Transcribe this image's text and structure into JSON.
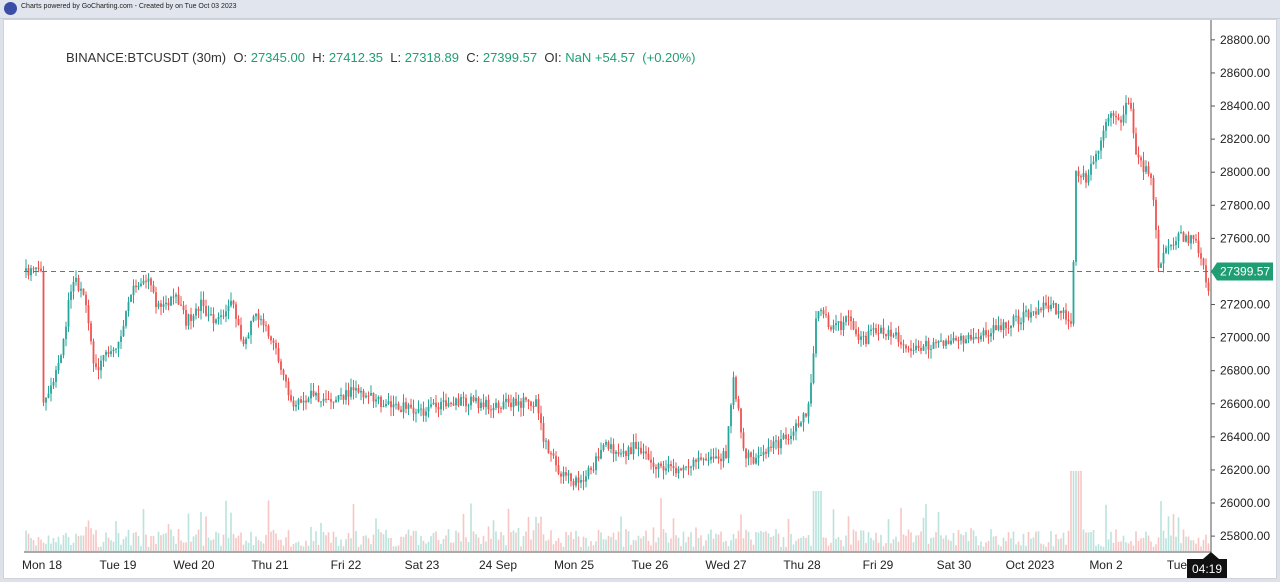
{
  "header": {
    "credit_text": "Charts powered by GoCharting.com - Created by  on Tue Oct 03 2023"
  },
  "legend": {
    "symbol": "BINANCE:BTCUSDT (30m)",
    "o_label": "O:",
    "o_value": "27345.00",
    "h_label": "H:",
    "h_value": "27412.35",
    "l_label": "L:",
    "l_value": "27318.89",
    "c_label": "C:",
    "c_value": "27399.57",
    "oi_label": "OI:",
    "oi_value": "NaN",
    "change": "+54.57",
    "change_pct": "(+0.20%)"
  },
  "colors": {
    "up": "#26a69a",
    "down": "#ef5350",
    "price_line": "#1f9e73",
    "axis_text": "#222222",
    "legend_value": "#1f9e73"
  },
  "chart_data": {
    "type": "candlestick",
    "xlabel": "",
    "ylabel": "",
    "ylim": [
      25710,
      28920
    ],
    "y_ticks": [
      25800,
      26000,
      26200,
      26400,
      26600,
      26800,
      27000,
      27200,
      27400,
      27600,
      27800,
      28000,
      28200,
      28400,
      28600,
      28800
    ],
    "y_tick_labels": [
      "25800.00",
      "26000.00",
      "26200.00",
      "26400.00",
      "26600.00",
      "26800.00",
      "27000.00",
      "27200.00",
      "27400.00",
      "27600.00",
      "27800.00",
      "28000.00",
      "28200.00",
      "28400.00",
      "28600.00",
      "28800.00"
    ],
    "x_tick_labels": [
      {
        "label": "Mon 18",
        "day": 0
      },
      {
        "label": "Tue 19",
        "day": 1
      },
      {
        "label": "Wed 20",
        "day": 2
      },
      {
        "label": "Thu 21",
        "day": 3
      },
      {
        "label": "Fri 22",
        "day": 4
      },
      {
        "label": "Sat 23",
        "day": 5
      },
      {
        "label": "24 Sep",
        "day": 6
      },
      {
        "label": "Mon 25",
        "day": 7
      },
      {
        "label": "Tue 26",
        "day": 8
      },
      {
        "label": "Wed 27",
        "day": 9
      },
      {
        "label": "Thu 28",
        "day": 10
      },
      {
        "label": "Fri 29",
        "day": 11
      },
      {
        "label": "Sat 30",
        "day": 12
      },
      {
        "label": "Oct 2023",
        "day": 13
      },
      {
        "label": "Mon 2",
        "day": 14
      },
      {
        "label": "Tue 3",
        "day": 15
      }
    ],
    "last_price": 27399.57,
    "last_price_label": "27399.57",
    "countdown_label": "04:19",
    "grid": false,
    "series_path": [
      [
        0.0,
        26550
      ],
      [
        0.1,
        26700
      ],
      [
        0.2,
        26800
      ],
      [
        0.3,
        27050
      ],
      [
        0.4,
        27350
      ],
      [
        0.55,
        27280
      ],
      [
        0.7,
        26800
      ],
      [
        0.85,
        26900
      ],
      [
        1.0,
        26950
      ],
      [
        1.2,
        27300
      ],
      [
        1.4,
        27350
      ],
      [
        1.55,
        27150
      ],
      [
        1.75,
        27250
      ],
      [
        1.9,
        27100
      ],
      [
        2.1,
        27200
      ],
      [
        2.3,
        27080
      ],
      [
        2.5,
        27250
      ],
      [
        2.65,
        26950
      ],
      [
        2.8,
        27150
      ],
      [
        3.0,
        27000
      ],
      [
        3.2,
        26750
      ],
      [
        3.3,
        26600
      ],
      [
        3.5,
        26650
      ],
      [
        3.8,
        26600
      ],
      [
        4.1,
        26680
      ],
      [
        4.4,
        26620
      ],
      [
        4.7,
        26580
      ],
      [
        5.0,
        26560
      ],
      [
        5.3,
        26590
      ],
      [
        5.6,
        26620
      ],
      [
        5.9,
        26590
      ],
      [
        6.2,
        26600
      ],
      [
        6.4,
        26620
      ],
      [
        6.5,
        26600
      ],
      [
        6.6,
        26380
      ],
      [
        6.8,
        26200
      ],
      [
        7.0,
        26130
      ],
      [
        7.1,
        26150
      ],
      [
        7.25,
        26220
      ],
      [
        7.4,
        26380
      ],
      [
        7.6,
        26300
      ],
      [
        7.8,
        26340
      ],
      [
        8.0,
        26250
      ],
      [
        8.2,
        26200
      ],
      [
        8.4,
        26220
      ],
      [
        8.6,
        26260
      ],
      [
        8.8,
        26250
      ],
      [
        9.0,
        26300
      ],
      [
        9.1,
        26750
      ],
      [
        9.25,
        26300
      ],
      [
        9.4,
        26250
      ],
      [
        9.6,
        26330
      ],
      [
        9.8,
        26400
      ],
      [
        10.0,
        26480
      ],
      [
        10.1,
        26620
      ],
      [
        10.2,
        27200
      ],
      [
        10.4,
        27050
      ],
      [
        10.6,
        27100
      ],
      [
        10.8,
        26980
      ],
      [
        11.0,
        27050
      ],
      [
        11.2,
        27020
      ],
      [
        11.4,
        26900
      ],
      [
        11.6,
        26950
      ],
      [
        11.9,
        26960
      ],
      [
        12.2,
        26990
      ],
      [
        12.5,
        27050
      ],
      [
        12.8,
        27100
      ],
      [
        13.0,
        27150
      ],
      [
        13.2,
        27200
      ],
      [
        13.45,
        27150
      ],
      [
        13.55,
        27080
      ],
      [
        13.6,
        28000
      ],
      [
        13.75,
        27950
      ],
      [
        13.9,
        28150
      ],
      [
        14.05,
        28350
      ],
      [
        14.2,
        28300
      ],
      [
        14.3,
        28450
      ],
      [
        14.4,
        28100
      ],
      [
        14.6,
        27950
      ],
      [
        14.7,
        27400
      ],
      [
        14.8,
        27550
      ],
      [
        15.0,
        27620
      ],
      [
        15.2,
        27560
      ],
      [
        15.35,
        27300
      ],
      [
        15.4,
        27399.57
      ]
    ]
  }
}
